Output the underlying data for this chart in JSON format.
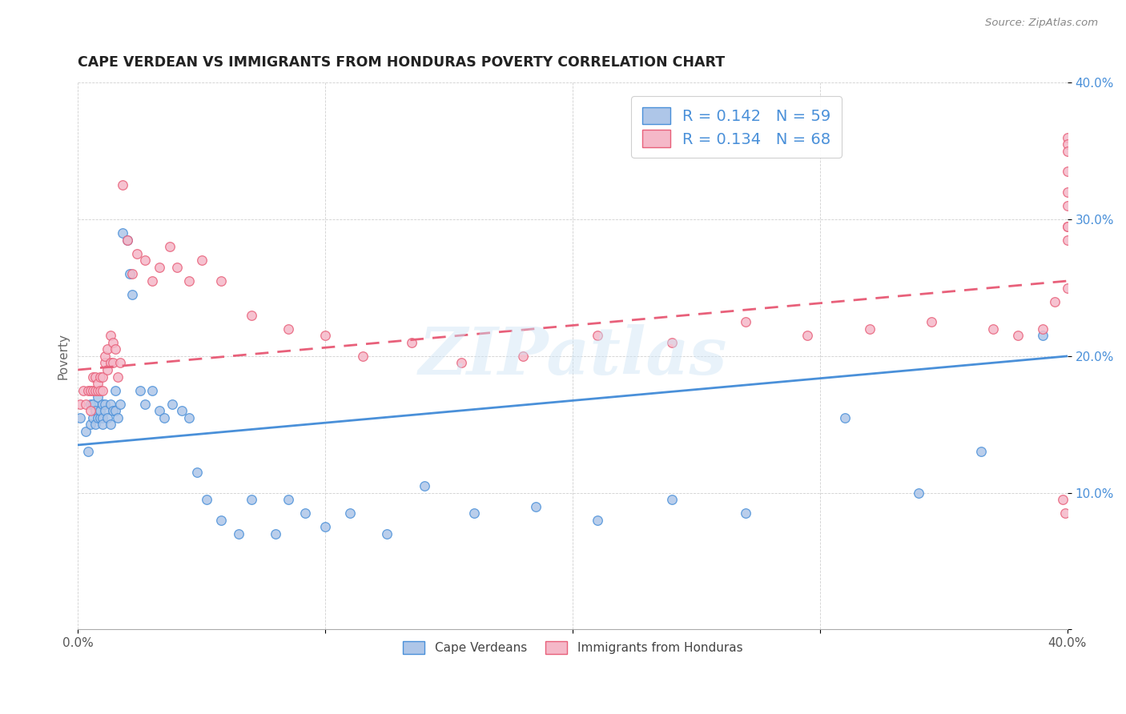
{
  "title": "CAPE VERDEAN VS IMMIGRANTS FROM HONDURAS POVERTY CORRELATION CHART",
  "source": "Source: ZipAtlas.com",
  "ylabel": "Poverty",
  "xlim": [
    0.0,
    0.4
  ],
  "ylim": [
    0.0,
    0.4
  ],
  "blue_color": "#aec6e8",
  "pink_color": "#f5b8c8",
  "blue_line_color": "#4a90d9",
  "pink_line_color": "#e8607a",
  "blue_R": 0.142,
  "blue_N": 59,
  "pink_R": 0.134,
  "pink_N": 68,
  "legend_label_blue": "Cape Verdeans",
  "legend_label_pink": "Immigrants from Honduras",
  "watermark": "ZIPatlas",
  "blue_scatter_x": [
    0.001,
    0.003,
    0.004,
    0.005,
    0.005,
    0.006,
    0.006,
    0.007,
    0.007,
    0.008,
    0.008,
    0.009,
    0.009,
    0.01,
    0.01,
    0.01,
    0.011,
    0.011,
    0.012,
    0.013,
    0.013,
    0.014,
    0.015,
    0.015,
    0.016,
    0.017,
    0.018,
    0.02,
    0.021,
    0.022,
    0.025,
    0.027,
    0.03,
    0.033,
    0.035,
    0.038,
    0.042,
    0.045,
    0.048,
    0.052,
    0.058,
    0.065,
    0.07,
    0.08,
    0.085,
    0.092,
    0.1,
    0.11,
    0.125,
    0.14,
    0.16,
    0.185,
    0.21,
    0.24,
    0.27,
    0.31,
    0.34,
    0.365,
    0.39
  ],
  "blue_scatter_y": [
    0.155,
    0.145,
    0.13,
    0.15,
    0.165,
    0.155,
    0.165,
    0.15,
    0.16,
    0.155,
    0.17,
    0.155,
    0.16,
    0.165,
    0.155,
    0.15,
    0.165,
    0.16,
    0.155,
    0.15,
    0.165,
    0.16,
    0.175,
    0.16,
    0.155,
    0.165,
    0.29,
    0.285,
    0.26,
    0.245,
    0.175,
    0.165,
    0.175,
    0.16,
    0.155,
    0.165,
    0.16,
    0.155,
    0.115,
    0.095,
    0.08,
    0.07,
    0.095,
    0.07,
    0.095,
    0.085,
    0.075,
    0.085,
    0.07,
    0.105,
    0.085,
    0.09,
    0.08,
    0.095,
    0.085,
    0.155,
    0.1,
    0.13,
    0.215
  ],
  "pink_scatter_x": [
    0.001,
    0.002,
    0.003,
    0.004,
    0.005,
    0.005,
    0.006,
    0.006,
    0.007,
    0.007,
    0.008,
    0.008,
    0.009,
    0.009,
    0.01,
    0.01,
    0.011,
    0.011,
    0.012,
    0.012,
    0.013,
    0.013,
    0.014,
    0.014,
    0.015,
    0.016,
    0.017,
    0.018,
    0.02,
    0.022,
    0.024,
    0.027,
    0.03,
    0.033,
    0.037,
    0.04,
    0.045,
    0.05,
    0.058,
    0.07,
    0.085,
    0.1,
    0.115,
    0.135,
    0.155,
    0.18,
    0.21,
    0.24,
    0.27,
    0.295,
    0.32,
    0.345,
    0.37,
    0.38,
    0.39,
    0.395,
    0.398,
    0.399,
    0.4,
    0.4,
    0.4,
    0.4,
    0.4,
    0.4,
    0.4,
    0.4,
    0.4,
    0.4
  ],
  "pink_scatter_y": [
    0.165,
    0.175,
    0.165,
    0.175,
    0.175,
    0.16,
    0.175,
    0.185,
    0.175,
    0.185,
    0.175,
    0.18,
    0.185,
    0.175,
    0.185,
    0.175,
    0.195,
    0.2,
    0.19,
    0.205,
    0.215,
    0.195,
    0.21,
    0.195,
    0.205,
    0.185,
    0.195,
    0.325,
    0.285,
    0.26,
    0.275,
    0.27,
    0.255,
    0.265,
    0.28,
    0.265,
    0.255,
    0.27,
    0.255,
    0.23,
    0.22,
    0.215,
    0.2,
    0.21,
    0.195,
    0.2,
    0.215,
    0.21,
    0.225,
    0.215,
    0.22,
    0.225,
    0.22,
    0.215,
    0.22,
    0.24,
    0.095,
    0.085,
    0.36,
    0.355,
    0.295,
    0.25,
    0.35,
    0.335,
    0.32,
    0.31,
    0.295,
    0.285
  ],
  "blue_line_x0": 0.0,
  "blue_line_x1": 0.4,
  "blue_line_y0": 0.135,
  "blue_line_y1": 0.2,
  "pink_line_x0": 0.0,
  "pink_line_x1": 0.4,
  "pink_line_y0": 0.19,
  "pink_line_y1": 0.255
}
